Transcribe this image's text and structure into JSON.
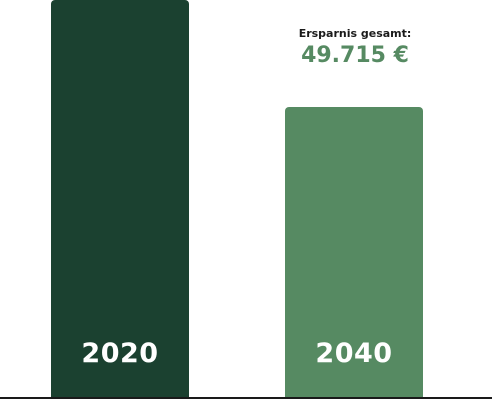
{
  "chart_data": {
    "type": "bar",
    "categories": [
      "2020",
      "2040"
    ],
    "values": [
      100,
      73
    ],
    "annotation": {
      "title": "Ersparnis gesamt:",
      "value": "49.715 €"
    },
    "colors": {
      "2020": "#1b4130",
      "2040": "#568a62",
      "annotation_value": "#568a62",
      "baseline": "#1a1a1a"
    },
    "grid": false
  }
}
